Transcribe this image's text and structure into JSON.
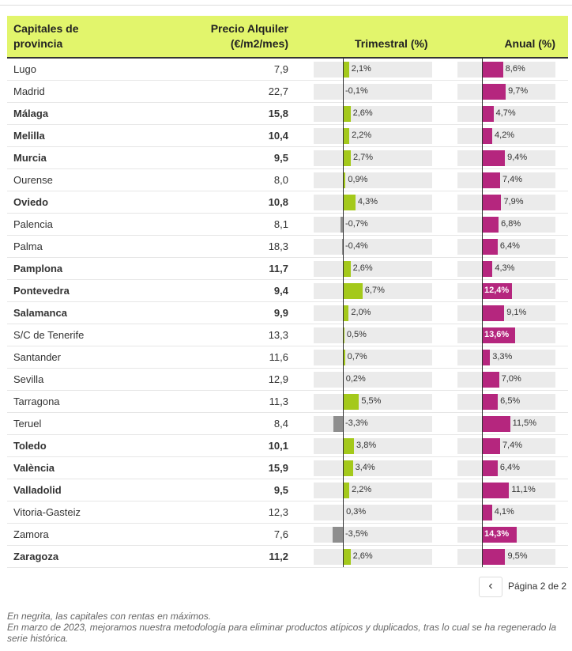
{
  "header": {
    "col_name": "Capitales de provincia",
    "col_price": "Precio Alquiler (€/m2/mes)",
    "col_quarter": "Trimestral (%)",
    "col_year": "Anual (%)"
  },
  "colors": {
    "header_bg": "#e2f56c",
    "quarter_pos": "#a4c91b",
    "quarter_neg": "#8e8e8e",
    "year": "#b5267e"
  },
  "rows": [
    {
      "name": "Lugo",
      "price": "7,9",
      "bold": false,
      "q": 2.1,
      "q_label": "2,1%",
      "y": 8.6,
      "y_label": "8,6%"
    },
    {
      "name": "Madrid",
      "price": "22,7",
      "bold": false,
      "q": -0.1,
      "q_label": "-0,1%",
      "y": 9.7,
      "y_label": "9,7%"
    },
    {
      "name": "Málaga",
      "price": "15,8",
      "bold": true,
      "q": 2.6,
      "q_label": "2,6%",
      "y": 4.7,
      "y_label": "4,7%"
    },
    {
      "name": "Melilla",
      "price": "10,4",
      "bold": true,
      "q": 2.2,
      "q_label": "2,2%",
      "y": 4.2,
      "y_label": "4,2%"
    },
    {
      "name": "Murcia",
      "price": "9,5",
      "bold": true,
      "q": 2.7,
      "q_label": "2,7%",
      "y": 9.4,
      "y_label": "9,4%"
    },
    {
      "name": "Ourense",
      "price": "8,0",
      "bold": false,
      "q": 0.9,
      "q_label": "0,9%",
      "y": 7.4,
      "y_label": "7,4%"
    },
    {
      "name": "Oviedo",
      "price": "10,8",
      "bold": true,
      "q": 4.3,
      "q_label": "4,3%",
      "y": 7.9,
      "y_label": "7,9%"
    },
    {
      "name": "Palencia",
      "price": "8,1",
      "bold": false,
      "q": -0.7,
      "q_label": "-0,7%",
      "y": 6.8,
      "y_label": "6,8%"
    },
    {
      "name": "Palma",
      "price": "18,3",
      "bold": false,
      "q": -0.4,
      "q_label": "-0,4%",
      "y": 6.4,
      "y_label": "6,4%"
    },
    {
      "name": "Pamplona",
      "price": "11,7",
      "bold": true,
      "q": 2.6,
      "q_label": "2,6%",
      "y": 4.3,
      "y_label": "4,3%"
    },
    {
      "name": "Pontevedra",
      "price": "9,4",
      "bold": true,
      "q": 6.7,
      "q_label": "6,7%",
      "y": 12.4,
      "y_label": "12,4%"
    },
    {
      "name": "Salamanca",
      "price": "9,9",
      "bold": true,
      "q": 2.0,
      "q_label": "2,0%",
      "y": 9.1,
      "y_label": "9,1%"
    },
    {
      "name": "S/C de Tenerife",
      "price": "13,3",
      "bold": false,
      "q": 0.5,
      "q_label": "0,5%",
      "y": 13.6,
      "y_label": "13,6%"
    },
    {
      "name": "Santander",
      "price": "11,6",
      "bold": false,
      "q": 0.7,
      "q_label": "0,7%",
      "y": 3.3,
      "y_label": "3,3%"
    },
    {
      "name": "Sevilla",
      "price": "12,9",
      "bold": false,
      "q": 0.2,
      "q_label": "0,2%",
      "y": 7.0,
      "y_label": "7,0%"
    },
    {
      "name": "Tarragona",
      "price": "11,3",
      "bold": false,
      "q": 5.5,
      "q_label": "5,5%",
      "y": 6.5,
      "y_label": "6,5%"
    },
    {
      "name": "Teruel",
      "price": "8,4",
      "bold": false,
      "q": -3.3,
      "q_label": "-3,3%",
      "y": 11.5,
      "y_label": "11,5%"
    },
    {
      "name": "Toledo",
      "price": "10,1",
      "bold": true,
      "q": 3.8,
      "q_label": "3,8%",
      "y": 7.4,
      "y_label": "7,4%"
    },
    {
      "name": "València",
      "price": "15,9",
      "bold": true,
      "q": 3.4,
      "q_label": "3,4%",
      "y": 6.4,
      "y_label": "6,4%"
    },
    {
      "name": "Valladolid",
      "price": "9,5",
      "bold": true,
      "q": 2.2,
      "q_label": "2,2%",
      "y": 11.1,
      "y_label": "11,1%"
    },
    {
      "name": "Vitoria-Gasteiz",
      "price": "12,3",
      "bold": false,
      "q": 0.3,
      "q_label": "0,3%",
      "y": 4.1,
      "y_label": "4,1%"
    },
    {
      "name": "Zamora",
      "price": "7,6",
      "bold": false,
      "q": -3.5,
      "q_label": "-3,5%",
      "y": 14.3,
      "y_label": "14,3%"
    },
    {
      "name": "Zaragoza",
      "price": "11,2",
      "bold": true,
      "q": 2.6,
      "q_label": "2,6%",
      "y": 9.5,
      "y_label": "9,5%"
    }
  ],
  "pager": {
    "label": "Página 2 de 2",
    "prev_icon": "chevron-left-icon"
  },
  "notes": [
    "En negrita, las capitales con rentas en máximos.",
    "En marzo de 2023, mejoramos nuestra metodología para eliminar productos atípicos y duplicados, tras lo cual se ha regenerado la serie histórica."
  ]
}
